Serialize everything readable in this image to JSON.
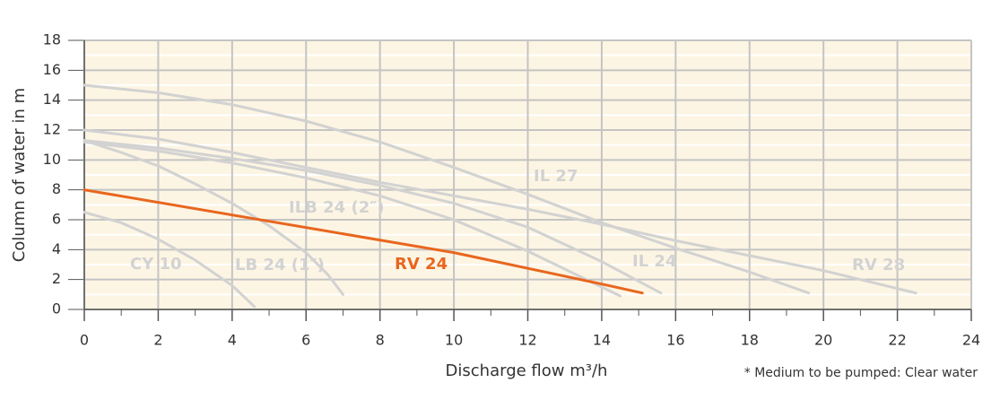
{
  "chart_data": {
    "type": "line",
    "x_label": "Discharge flow m³/h",
    "y_label": "Column of water in m",
    "note": "* Medium to be pumped: Clear water",
    "xlim": [
      0,
      24
    ],
    "xticks": [
      0,
      2,
      4,
      6,
      8,
      10,
      12,
      14,
      16,
      18,
      20,
      22,
      24
    ],
    "ylim": [
      0,
      18
    ],
    "yticks": [
      0,
      2,
      4,
      6,
      8,
      10,
      12,
      14,
      16,
      18
    ],
    "grid": true,
    "series": [
      {
        "name": "CY 10",
        "color": "#d2d2d2",
        "x": [
          0,
          1,
          2,
          3,
          4,
          4.6
        ],
        "values": [
          6.5,
          5.8,
          4.7,
          3.3,
          1.6,
          0.2
        ]
      },
      {
        "name": "LB 24 (1″)",
        "color": "#d2d2d2",
        "x": [
          0,
          1,
          2,
          3,
          4,
          5,
          6,
          6.6,
          7
        ],
        "values": [
          11.3,
          10.5,
          9.6,
          8.4,
          7.1,
          5.6,
          3.8,
          2.3,
          1
        ]
      },
      {
        "name": "ILB 24 (2″)",
        "color": "#d2d2d2",
        "x": [
          0,
          2,
          4,
          6,
          8,
          10,
          12,
          13.5,
          14.5
        ],
        "values": [
          11.2,
          10.6,
          9.8,
          8.8,
          7.6,
          6,
          3.9,
          2.1,
          0.9
        ]
      },
      {
        "name": "IL 24",
        "color": "#d2d2d2",
        "x": [
          0,
          2,
          4,
          6,
          8,
          10,
          12,
          14,
          15.6
        ],
        "values": [
          11.3,
          10.8,
          10.1,
          9.3,
          8.3,
          7.1,
          5.5,
          3.2,
          1.1
        ]
      },
      {
        "name": "IL 27",
        "color": "#d2d2d2",
        "x": [
          0,
          2,
          4,
          6,
          8,
          10,
          12,
          14,
          16,
          18,
          19.6
        ],
        "values": [
          15,
          14.5,
          13.7,
          12.6,
          11.2,
          9.5,
          7.7,
          5.8,
          4.1,
          2.5,
          1.1
        ]
      },
      {
        "name": "RV 28",
        "color": "#d2d2d2",
        "x": [
          0,
          2,
          4,
          6,
          8,
          10,
          12,
          14,
          16,
          18,
          20,
          22.5
        ],
        "values": [
          12,
          11.4,
          10.5,
          9.5,
          8.5,
          7.6,
          6.7,
          5.7,
          4.6,
          3.6,
          2.6,
          1.1
        ]
      },
      {
        "name": "RV 24",
        "color": "#e8661e",
        "x": [
          0,
          5,
          10,
          14,
          15.1
        ],
        "values": [
          8,
          5.9,
          3.8,
          1.7,
          1.1
        ]
      }
    ]
  }
}
